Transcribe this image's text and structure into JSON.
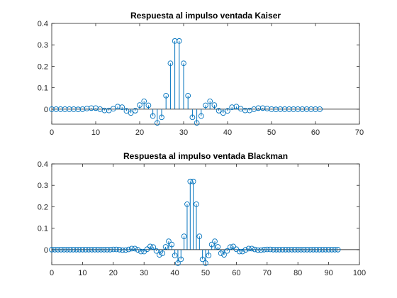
{
  "figure": {
    "background": "#ffffff",
    "axes_color": "#262626",
    "series_color": "#0072bd"
  },
  "chart_data": [
    {
      "type": "stem",
      "title": "Respuesta al impulso ventada Kaiser",
      "xlabel": "",
      "ylabel": "",
      "xlim": [
        0,
        70
      ],
      "ylim": [
        -0.07,
        0.4
      ],
      "xticks": [
        0,
        10,
        20,
        30,
        40,
        50,
        60,
        70
      ],
      "yticks": [
        0,
        0.1,
        0.2,
        0.3,
        0.4
      ],
      "xtick_labels": [
        "0",
        "10",
        "20",
        "30",
        "40",
        "50",
        "60",
        "70"
      ],
      "ytick_labels": [
        "0",
        "0.1",
        "0.2",
        "0.3",
        "0.4"
      ],
      "grid": false,
      "series": [
        {
          "x": [
            0,
            1,
            2,
            3,
            4,
            5,
            6,
            7,
            8,
            9,
            10,
            11,
            12,
            13,
            14,
            15,
            16,
            17,
            18,
            19,
            20,
            21,
            22,
            23,
            24,
            25,
            26,
            27,
            28,
            29,
            30,
            31,
            32,
            33,
            34,
            35,
            36,
            37,
            38,
            39,
            40,
            41,
            42,
            43,
            44,
            45,
            46,
            47,
            48,
            49,
            50,
            51,
            52,
            53,
            54,
            55,
            56,
            57,
            58,
            59,
            60,
            61
          ],
          "values": [
            0.0,
            0.0,
            0.0,
            0.0,
            0.0,
            0.0,
            -0.001,
            0.0,
            0.003,
            0.005,
            0.005,
            0.0,
            -0.006,
            -0.006,
            0.002,
            0.012,
            0.009,
            -0.008,
            -0.018,
            -0.007,
            0.019,
            0.037,
            0.018,
            -0.032,
            -0.064,
            -0.038,
            0.063,
            0.214,
            0.318,
            0.318,
            0.214,
            0.063,
            -0.038,
            -0.064,
            -0.032,
            0.018,
            0.037,
            0.019,
            -0.007,
            -0.018,
            -0.008,
            0.009,
            0.012,
            0.002,
            -0.006,
            -0.006,
            0.0,
            0.005,
            0.005,
            0.003,
            0.0,
            -0.001,
            0.0,
            0.0,
            0.0,
            0.0,
            0.0,
            0.0,
            0.0,
            0.0,
            0.0,
            0.0
          ]
        }
      ]
    },
    {
      "type": "stem",
      "title": "Respuesta al impulso ventada Blackman",
      "xlabel": "",
      "ylabel": "",
      "xlim": [
        0,
        100
      ],
      "ylim": [
        -0.07,
        0.4
      ],
      "xticks": [
        0,
        10,
        20,
        30,
        40,
        50,
        60,
        70,
        80,
        90,
        100
      ],
      "yticks": [
        0,
        0.1,
        0.2,
        0.3,
        0.4
      ],
      "xtick_labels": [
        "0",
        "10",
        "20",
        "30",
        "40",
        "50",
        "60",
        "70",
        "80",
        "90",
        "100"
      ],
      "ytick_labels": [
        "0",
        "0.1",
        "0.2",
        "0.3",
        "0.4"
      ],
      "grid": false,
      "series": [
        {
          "x": [
            0,
            1,
            2,
            3,
            4,
            5,
            6,
            7,
            8,
            9,
            10,
            11,
            12,
            13,
            14,
            15,
            16,
            17,
            18,
            19,
            20,
            21,
            22,
            23,
            24,
            25,
            26,
            27,
            28,
            29,
            30,
            31,
            32,
            33,
            34,
            35,
            36,
            37,
            38,
            39,
            40,
            41,
            42,
            43,
            44,
            45,
            46,
            47,
            48,
            49,
            50,
            51,
            52,
            53,
            54,
            55,
            56,
            57,
            58,
            59,
            60,
            61,
            62,
            63,
            64,
            65,
            66,
            67,
            68,
            69,
            70,
            71,
            72,
            73,
            74,
            75,
            76,
            77,
            78,
            79,
            80,
            81,
            82,
            83,
            84,
            85,
            86,
            87,
            88,
            89,
            90,
            91,
            92,
            93
          ],
          "values": [
            0.0,
            0.0,
            0.0,
            0.0,
            0.0,
            0.0,
            0.0,
            0.0,
            0.0,
            0.0,
            0.0,
            0.0,
            0.0,
            0.0,
            0.0,
            0.0,
            0.0,
            0.0,
            0.0,
            0.0,
            0.001,
            0.001,
            0.0,
            -0.002,
            -0.002,
            0.001,
            0.005,
            0.005,
            -0.001,
            -0.009,
            -0.009,
            0.002,
            0.015,
            0.012,
            -0.006,
            -0.024,
            -0.017,
            0.013,
            0.039,
            0.024,
            -0.027,
            -0.063,
            -0.045,
            0.062,
            0.212,
            0.318,
            0.318,
            0.212,
            0.062,
            -0.045,
            -0.063,
            -0.027,
            0.024,
            0.039,
            0.013,
            -0.017,
            -0.024,
            -0.006,
            0.012,
            0.015,
            0.002,
            -0.009,
            -0.009,
            -0.001,
            0.005,
            0.005,
            0.001,
            -0.002,
            -0.002,
            0.0,
            0.001,
            0.001,
            0.0,
            0.0,
            0.0,
            0.0,
            0.0,
            0.0,
            0.0,
            0.0,
            0.0,
            0.0,
            0.0,
            0.0,
            0.0,
            0.0,
            0.0,
            0.0,
            0.0,
            0.0,
            0.0,
            0.0,
            0.0,
            0.0
          ]
        }
      ]
    }
  ]
}
